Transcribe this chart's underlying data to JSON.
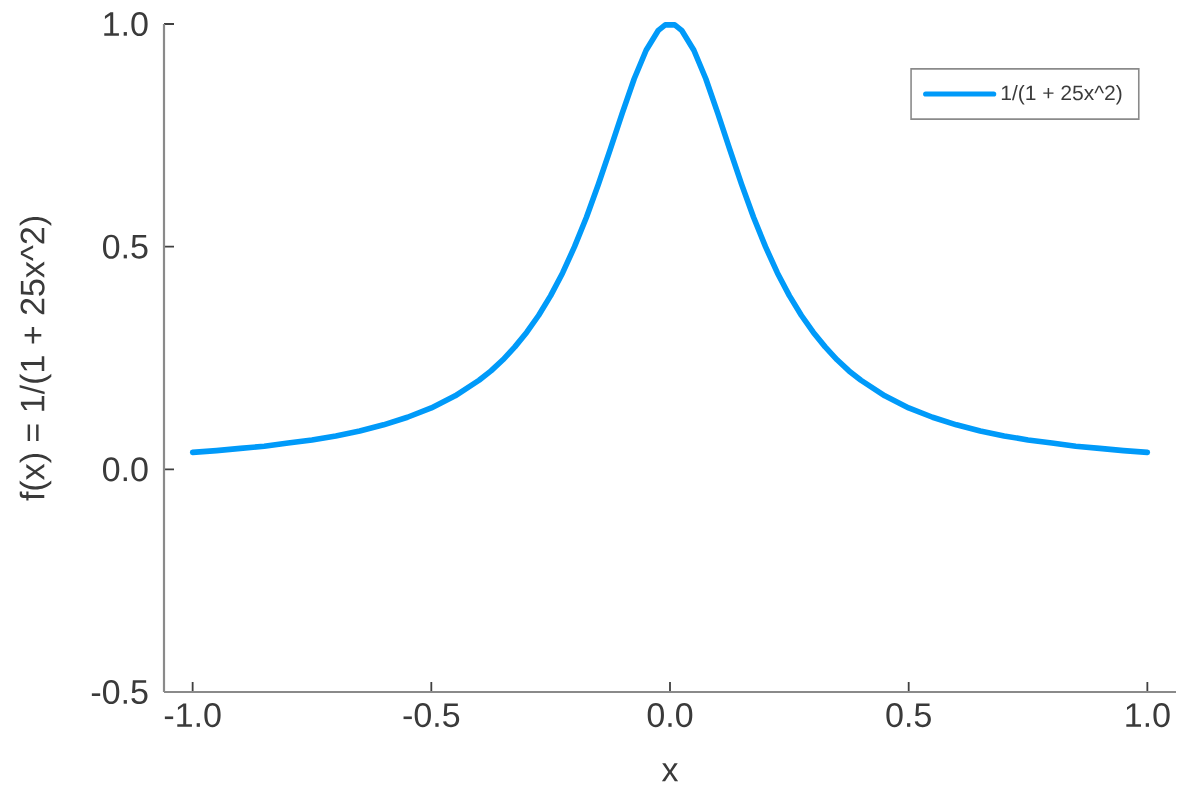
{
  "chart_data": {
    "type": "line",
    "xlabel": "x",
    "ylabel": "f(x) = 1/(1 + 25x^2)",
    "x": [
      -1.0,
      -0.95,
      -0.9,
      -0.85,
      -0.8,
      -0.75,
      -0.7,
      -0.65,
      -0.6,
      -0.55,
      -0.5,
      -0.45,
      -0.4,
      -0.375,
      -0.35,
      -0.325,
      -0.3,
      -0.275,
      -0.25,
      -0.225,
      -0.2,
      -0.175,
      -0.15,
      -0.125,
      -0.1,
      -0.075,
      -0.05,
      -0.025,
      -0.01,
      0.01,
      0.025,
      0.05,
      0.075,
      0.1,
      0.125,
      0.15,
      0.175,
      0.2,
      0.225,
      0.25,
      0.275,
      0.3,
      0.325,
      0.35,
      0.375,
      0.4,
      0.45,
      0.5,
      0.55,
      0.6,
      0.65,
      0.7,
      0.75,
      0.8,
      0.85,
      0.9,
      0.95,
      1.0
    ],
    "series": [
      {
        "name": "1/(1 + 25x^2)",
        "color": "#009af9",
        "values": [
          0.038,
          0.042,
          0.047,
          0.052,
          0.059,
          0.066,
          0.075,
          0.086,
          0.1,
          0.117,
          0.138,
          0.165,
          0.2,
          0.221,
          0.246,
          0.275,
          0.308,
          0.346,
          0.39,
          0.441,
          0.5,
          0.566,
          0.64,
          0.719,
          0.8,
          0.877,
          0.941,
          0.985,
          0.998,
          0.998,
          0.985,
          0.941,
          0.877,
          0.8,
          0.719,
          0.64,
          0.566,
          0.5,
          0.441,
          0.39,
          0.346,
          0.308,
          0.275,
          0.246,
          0.221,
          0.2,
          0.165,
          0.138,
          0.117,
          0.1,
          0.086,
          0.075,
          0.066,
          0.059,
          0.052,
          0.047,
          0.042,
          0.038
        ]
      }
    ],
    "xlim": [
      -1.06,
      1.06
    ],
    "ylim": [
      -0.5,
      1.0
    ],
    "xticks": [
      {
        "value": -1.0,
        "label": "-1.0"
      },
      -0.5,
      {
        "value": 0,
        "label": "0.0"
      },
      0.5,
      {
        "value": 1.0,
        "label": "1.0"
      }
    ],
    "yticks": [
      -0.5,
      {
        "value": 0,
        "label": "0.0"
      },
      0.5,
      {
        "value": 1.0,
        "label": "1.0"
      }
    ],
    "legend": "top right",
    "grid": false,
    "marker": "none",
    "line_style": "solid"
  }
}
